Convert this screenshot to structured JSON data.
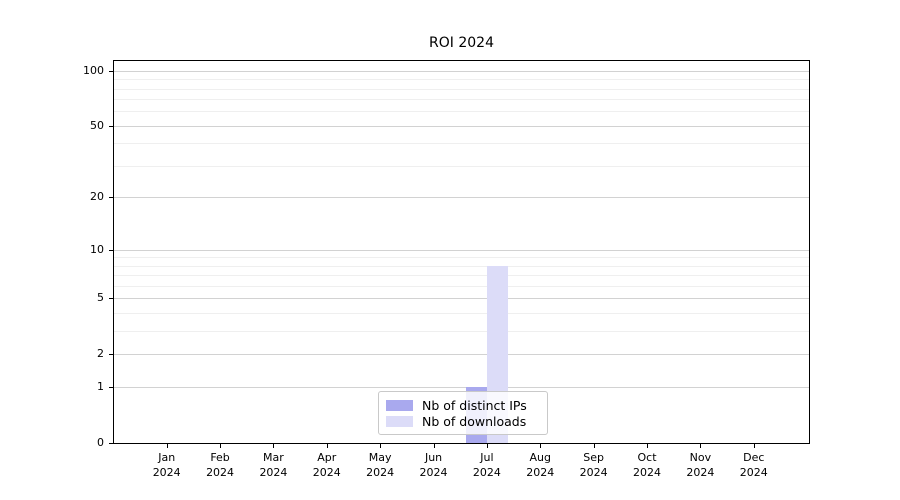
{
  "title": "ROI 2024",
  "chart_data": {
    "type": "bar",
    "title": "ROI 2024",
    "categories": [
      "Jan",
      "Feb",
      "Mar",
      "Apr",
      "May",
      "Jun",
      "Jul",
      "Aug",
      "Sep",
      "Oct",
      "Nov",
      "Dec"
    ],
    "x_sublabel": "2024",
    "series": [
      {
        "name": "Nb of distinct IPs",
        "color": "#a9a9ee",
        "values": [
          0,
          0,
          0,
          0,
          0,
          0,
          1,
          0,
          0,
          0,
          0,
          0
        ]
      },
      {
        "name": "Nb of downloads",
        "color": "#dcdcf8",
        "values": [
          0,
          0,
          0,
          0,
          0,
          0,
          8,
          0,
          0,
          0,
          0,
          0
        ]
      }
    ],
    "yticks": [
      0,
      1,
      2,
      5,
      10,
      20,
      50,
      100
    ],
    "minor_yticks": [
      3,
      4,
      6,
      7,
      8,
      9,
      30,
      40,
      60,
      70,
      80,
      90
    ],
    "scale": "log1p",
    "ylim": [
      0,
      113
    ],
    "xlabel": "",
    "ylabel": "",
    "grid": true,
    "legend_position": "lower center"
  },
  "colors": {
    "grid_major": "#d2d2d2",
    "grid_minor": "#efefef",
    "spine": "#000000",
    "legend_border": "#c9c9c9"
  }
}
